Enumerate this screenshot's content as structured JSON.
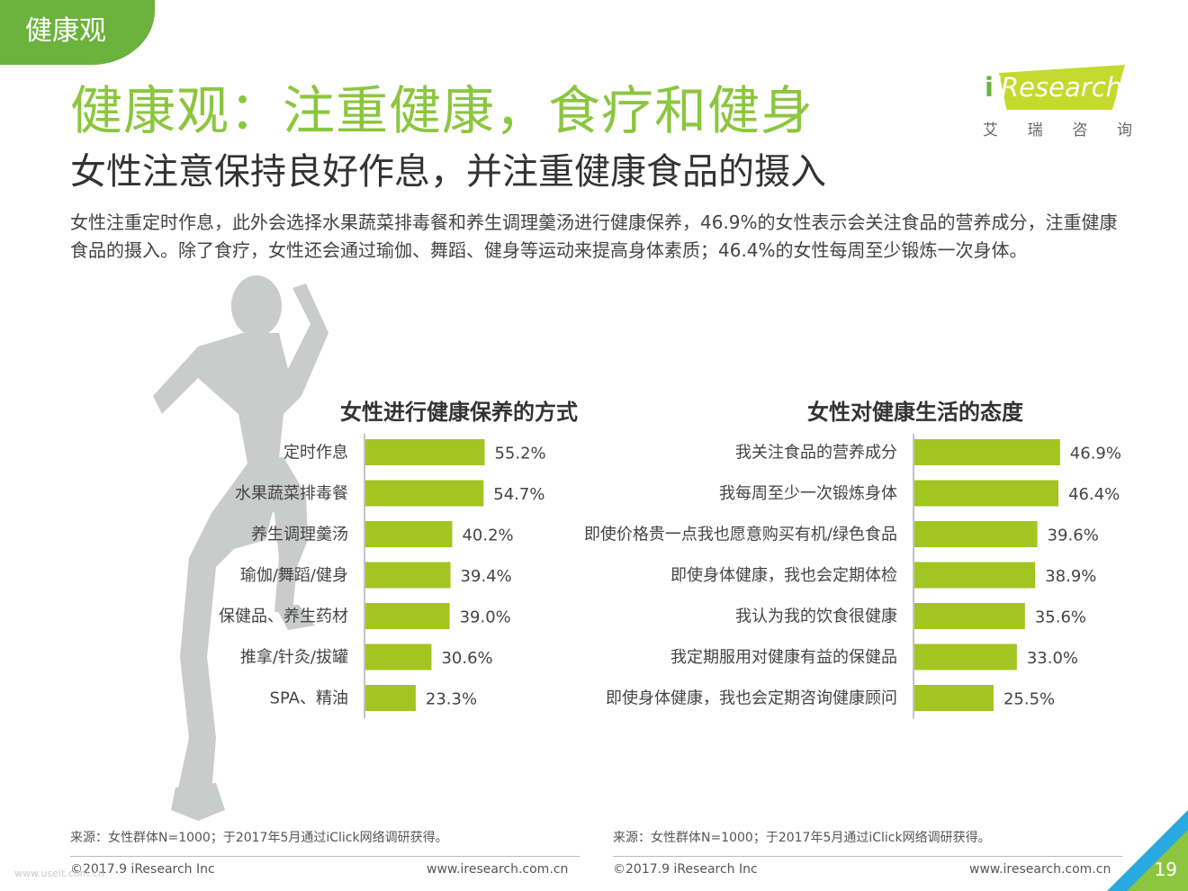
{
  "section_tag": "健康观",
  "title": "健康观：注重健康，食疗和健身",
  "subtitle": "女性注意保持良好作息，并注重健康食品的摄入",
  "intro": "女性注重定时作息，此外会选择水果蔬菜排毒餐和养生调理羹汤进行健康保养，46.9%的女性表示会关注食品的营养成分，注重健康食品的摄入。除了食疗，女性还会通过瑜伽、舞蹈、健身等运动来提高身体素质；46.4%的女性每周至少锻炼一次身体。",
  "logo": {
    "text": "iResearch",
    "cn": [
      "艾",
      "瑞",
      "咨",
      "询"
    ]
  },
  "colors": {
    "accent": "#8cc63f",
    "bar": "#a3c521",
    "tag": "#6cb33e",
    "silhouette": "#c9ccca"
  },
  "chart_data": [
    {
      "type": "bar",
      "orientation": "horizontal",
      "title": "女性进行健康保养的方式",
      "categories": [
        "定时作息",
        "水果蔬菜排毒餐",
        "养生调理羹汤",
        "瑜伽/舞蹈/健身",
        "保健品、养生药材",
        "推拿/针灸/拔罐",
        "SPA、精油"
      ],
      "values": [
        55.2,
        54.7,
        40.2,
        39.4,
        39.0,
        30.6,
        23.3
      ],
      "value_labels": [
        "55.2%",
        "54.7%",
        "40.2%",
        "39.4%",
        "39.0%",
        "30.6%",
        "23.3%"
      ],
      "unit": "%",
      "grid": false
    },
    {
      "type": "bar",
      "orientation": "horizontal",
      "title": "女性对健康生活的态度",
      "categories": [
        "我关注食品的营养成分",
        "我每周至少一次锻炼身体",
        "即使价格贵一点我也愿意购买有机/绿色食品",
        "即使身体健康，我也会定期体检",
        "我认为我的饮食很健康",
        "我定期服用对健康有益的保健品",
        "即使身体健康，我也会定期咨询健康顾问"
      ],
      "values": [
        46.9,
        46.4,
        39.6,
        38.9,
        35.6,
        33.0,
        25.5
      ],
      "value_labels": [
        "46.9%",
        "46.4%",
        "39.6%",
        "38.9%",
        "35.6%",
        "33.0%",
        "25.5%"
      ],
      "unit": "%",
      "grid": false
    }
  ],
  "footer": {
    "source_left": "来源：女性群体N=1000；于2017年5月通过iClick网络调研获得。",
    "source_right": "来源：女性群体N=1000；于2017年5月通过iClick网络调研获得。",
    "copyright_left": "©2017.9 iResearch Inc",
    "url_left": "www.iresearch.com.cn",
    "copyright_right": "©2017.9 iResearch Inc",
    "url_right": "www.iresearch.com.cn",
    "page_number": "19",
    "watermark": "www.useit.com.cn"
  }
}
